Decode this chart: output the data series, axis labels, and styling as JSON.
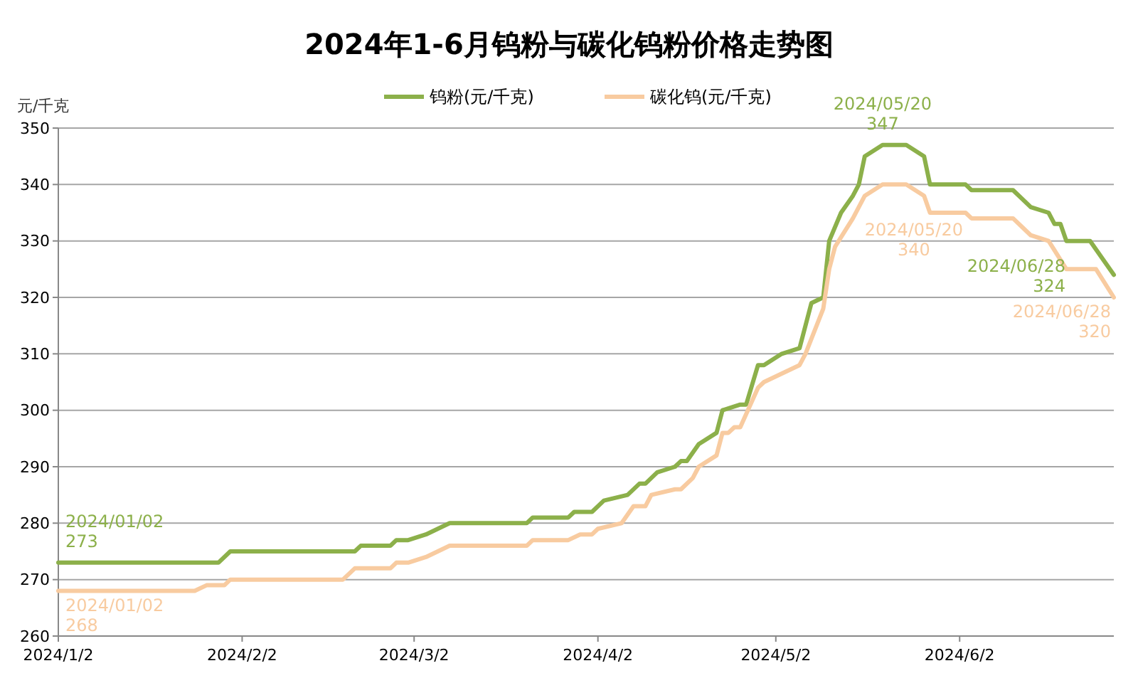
{
  "chart_data": {
    "type": "line",
    "title": "2024年1-6月钨粉与碳化钨粉价格走势图",
    "ylabel": "元/千克",
    "legend": "top",
    "grid": "y",
    "line_style": "solid",
    "marker": "none",
    "xlim": [
      "2024-01-02",
      "2024-06-28"
    ],
    "ylim": [
      260,
      350
    ],
    "yticks": [
      260,
      270,
      280,
      290,
      300,
      310,
      320,
      330,
      340,
      350
    ],
    "xticks": [
      {
        "value": "2024-01-02",
        "label": "2024/1/2"
      },
      {
        "value": "2024-02-02",
        "label": "2024/2/2"
      },
      {
        "value": "2024-03-02",
        "label": "2024/3/2"
      },
      {
        "value": "2024-04-02",
        "label": "2024/4/2"
      },
      {
        "value": "2024-05-02",
        "label": "2024/5/2"
      },
      {
        "value": "2024-06-02",
        "label": "2024/6/2"
      }
    ],
    "series": [
      {
        "name": "钨粉(元/千克)",
        "color": "#8cb04a",
        "x": [
          "2024-01-02",
          "2024-01-29",
          "2024-01-31",
          "2024-02-21",
          "2024-02-22",
          "2024-02-27",
          "2024-02-28",
          "2024-03-01",
          "2024-03-04",
          "2024-03-06",
          "2024-03-08",
          "2024-03-21",
          "2024-03-22",
          "2024-03-28",
          "2024-03-29",
          "2024-04-01",
          "2024-04-03",
          "2024-04-07",
          "2024-04-09",
          "2024-04-10",
          "2024-04-12",
          "2024-04-15",
          "2024-04-16",
          "2024-04-17",
          "2024-04-19",
          "2024-04-22",
          "2024-04-23",
          "2024-04-26",
          "2024-04-27",
          "2024-04-29",
          "2024-04-30",
          "2024-05-03",
          "2024-05-06",
          "2024-05-08",
          "2024-05-10",
          "2024-05-11",
          "2024-05-13",
          "2024-05-15",
          "2024-05-16",
          "2024-05-17",
          "2024-05-20",
          "2024-05-24",
          "2024-05-27",
          "2024-05-28",
          "2024-06-03",
          "2024-06-04",
          "2024-06-11",
          "2024-06-14",
          "2024-06-17",
          "2024-06-18",
          "2024-06-19",
          "2024-06-20",
          "2024-06-24",
          "2024-06-28"
        ],
        "values": [
          273,
          273,
          275,
          275,
          276,
          276,
          277,
          277,
          278,
          279,
          280,
          280,
          281,
          281,
          282,
          282,
          284,
          285,
          287,
          287,
          289,
          290,
          291,
          291,
          294,
          296,
          300,
          301,
          301,
          308,
          308,
          310,
          311,
          319,
          320,
          330,
          335,
          338,
          340,
          345,
          347,
          347,
          345,
          340,
          340,
          339,
          339,
          336,
          335,
          333,
          333,
          330,
          330,
          324
        ]
      },
      {
        "name": "碳化钨(元/千克)",
        "color": "#f8cba0",
        "x": [
          "2024-01-02",
          "2024-01-25",
          "2024-01-27",
          "2024-01-30",
          "2024-01-31",
          "2024-02-19",
          "2024-02-21",
          "2024-02-27",
          "2024-02-28",
          "2024-03-01",
          "2024-03-04",
          "2024-03-06",
          "2024-03-08",
          "2024-03-21",
          "2024-03-22",
          "2024-03-28",
          "2024-03-30",
          "2024-04-01",
          "2024-04-02",
          "2024-04-06",
          "2024-04-08",
          "2024-04-10",
          "2024-04-11",
          "2024-04-15",
          "2024-04-16",
          "2024-04-18",
          "2024-04-19",
          "2024-04-22",
          "2024-04-23",
          "2024-04-24",
          "2024-04-25",
          "2024-04-26",
          "2024-04-29",
          "2024-04-30",
          "2024-05-06",
          "2024-05-07",
          "2024-05-10",
          "2024-05-11",
          "2024-05-12",
          "2024-05-15",
          "2024-05-17",
          "2024-05-20",
          "2024-05-24",
          "2024-05-27",
          "2024-05-28",
          "2024-06-03",
          "2024-06-04",
          "2024-06-11",
          "2024-06-14",
          "2024-06-17",
          "2024-06-20",
          "2024-06-25",
          "2024-06-28"
        ],
        "values": [
          268,
          268,
          269,
          269,
          270,
          270,
          272,
          272,
          273,
          273,
          274,
          275,
          276,
          276,
          277,
          277,
          278,
          278,
          279,
          280,
          283,
          283,
          285,
          286,
          286,
          288,
          290,
          292,
          296,
          296,
          297,
          297,
          304,
          305,
          308,
          310,
          318,
          325,
          329,
          334,
          338,
          340,
          340,
          338,
          335,
          335,
          334,
          334,
          331,
          330,
          325,
          325,
          320
        ]
      }
    ],
    "annotations": [
      {
        "text": "2024/01/02\n273",
        "x": "2024-01-02",
        "y": 273
      },
      {
        "text": "2024/01/02\n268",
        "x": "2024-01-02",
        "y": 268
      },
      {
        "text": "2024/05/20\n347",
        "x": "2024-05-20",
        "y": 347
      },
      {
        "text": "2024/05/20\n340",
        "x": "2024-05-20",
        "y": 340
      },
      {
        "text": "2024/06/28\n324",
        "x": "2024-06-28",
        "y": 324
      },
      {
        "text": "2024/06/28\n320",
        "x": "2024-06-28",
        "y": 320
      }
    ]
  }
}
